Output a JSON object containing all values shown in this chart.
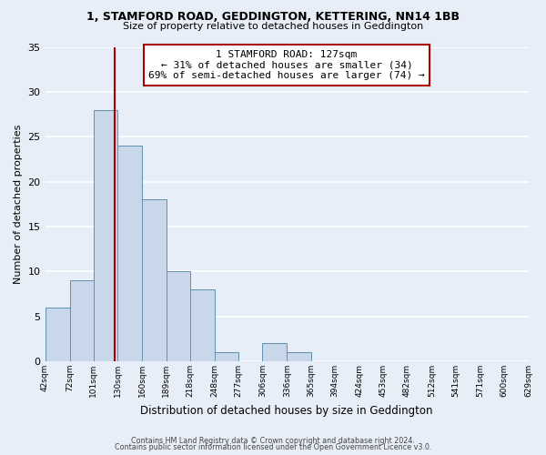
{
  "title1": "1, STAMFORD ROAD, GEDDINGTON, KETTERING, NN14 1BB",
  "title2": "Size of property relative to detached houses in Geddington",
  "xlabel": "Distribution of detached houses by size in Geddington",
  "ylabel": "Number of detached properties",
  "bin_labels": [
    "42sqm",
    "72sqm",
    "101sqm",
    "130sqm",
    "160sqm",
    "189sqm",
    "218sqm",
    "248sqm",
    "277sqm",
    "306sqm",
    "336sqm",
    "365sqm",
    "394sqm",
    "424sqm",
    "453sqm",
    "482sqm",
    "512sqm",
    "541sqm",
    "571sqm",
    "600sqm",
    "629sqm"
  ],
  "bin_edges": [
    42,
    72,
    101,
    130,
    160,
    189,
    218,
    248,
    277,
    306,
    336,
    365,
    394,
    424,
    453,
    482,
    512,
    541,
    571,
    600,
    629
  ],
  "bar_heights": [
    6,
    9,
    28,
    24,
    18,
    10,
    8,
    1,
    0,
    2,
    1,
    0,
    0,
    0,
    0,
    0,
    0,
    0,
    0,
    0
  ],
  "bar_color": "#c8d8ea",
  "bar_edge_color": "#6090b0",
  "property_line_x": 127,
  "property_line_color": "#aa0000",
  "annotation_title": "1 STAMFORD ROAD: 127sqm",
  "annotation_line1": "← 31% of detached houses are smaller (34)",
  "annotation_line2": "69% of semi-detached houses are larger (74) →",
  "annotation_box_color": "#ffffff",
  "annotation_box_edge_color": "#aa0000",
  "ylim": [
    0,
    35
  ],
  "yticks": [
    0,
    5,
    10,
    15,
    20,
    25,
    30,
    35
  ],
  "background_color": "#e8eef8",
  "grid_color": "#ffffff",
  "footer1": "Contains HM Land Registry data © Crown copyright and database right 2024.",
  "footer2": "Contains public sector information licensed under the Open Government Licence v3.0."
}
